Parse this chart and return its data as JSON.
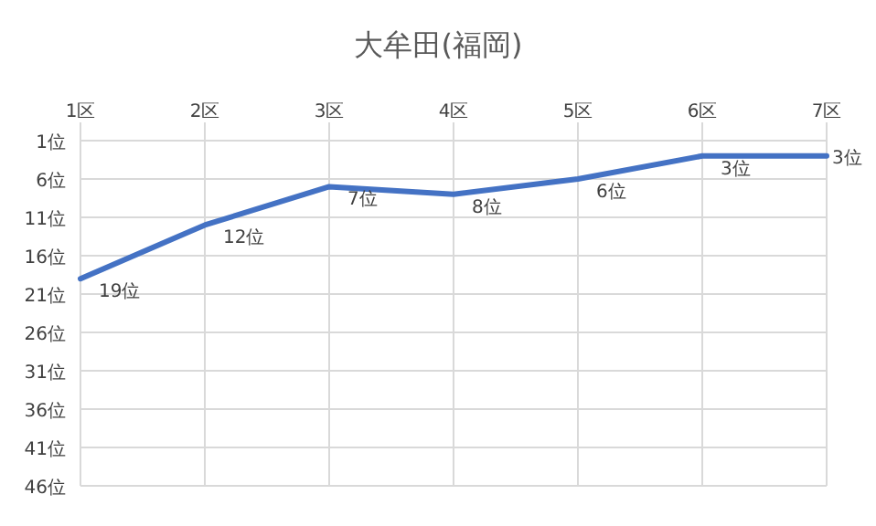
{
  "chart_data": {
    "type": "line",
    "title": "大牟田(福岡)",
    "categories": [
      "1区",
      "2区",
      "3区",
      "4区",
      "5区",
      "6区",
      "7区"
    ],
    "series": [
      {
        "color": "#4472c4",
        "values": [
          19,
          12,
          7,
          8,
          6,
          3,
          3
        ],
        "value_labels": [
          "19位",
          "12位",
          "7位",
          "8位",
          "6位",
          "3位",
          "3位"
        ]
      }
    ],
    "ylim": [
      46,
      1
    ],
    "yticks": [
      {
        "value": 1,
        "label": "1位"
      },
      {
        "value": 6,
        "label": "6位"
      },
      {
        "value": 11,
        "label": "11位"
      },
      {
        "value": 16,
        "label": "16位"
      },
      {
        "value": 21,
        "label": "21位"
      },
      {
        "value": 26,
        "label": "26位"
      },
      {
        "value": 31,
        "label": "31位"
      },
      {
        "value": 36,
        "label": "36位"
      },
      {
        "value": 41,
        "label": "41位"
      },
      {
        "value": 46,
        "label": "46位"
      }
    ],
    "grid": true,
    "marker": "none",
    "line_style": "solid"
  }
}
